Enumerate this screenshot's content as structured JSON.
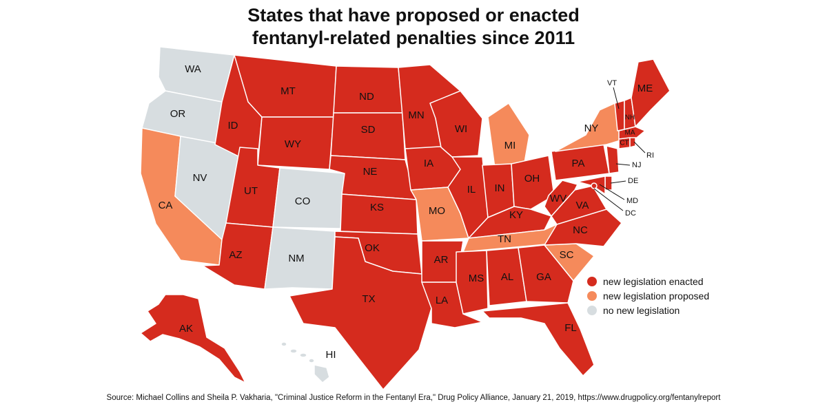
{
  "title": {
    "line1": "States that have proposed or enacted",
    "line2": "fentanyl-related penalties since 2011"
  },
  "colors": {
    "enacted": "#d52b1e",
    "proposed": "#f58a5b",
    "none": "#d7dde0"
  },
  "legend": [
    {
      "key": "enacted",
      "label": "new legislation enacted"
    },
    {
      "key": "proposed",
      "label": "new legislation proposed"
    },
    {
      "key": "none",
      "label": "no new legislation"
    }
  ],
  "states": {
    "WA": "none",
    "OR": "none",
    "NV": "none",
    "CO": "none",
    "NM": "none",
    "HI": "none",
    "CA": "proposed",
    "MO": "proposed",
    "MI": "proposed",
    "TN": "proposed",
    "SC": "proposed",
    "NY": "proposed",
    "ID": "enacted",
    "MT": "enacted",
    "WY": "enacted",
    "UT": "enacted",
    "AZ": "enacted",
    "ND": "enacted",
    "SD": "enacted",
    "NE": "enacted",
    "KS": "enacted",
    "OK": "enacted",
    "TX": "enacted",
    "MN": "enacted",
    "IA": "enacted",
    "AR": "enacted",
    "LA": "enacted",
    "WI": "enacted",
    "IL": "enacted",
    "MS": "enacted",
    "AL": "enacted",
    "IN": "enacted",
    "OH": "enacted",
    "KY": "enacted",
    "GA": "enacted",
    "FL": "enacted",
    "WV": "enacted",
    "VA": "enacted",
    "NC": "enacted",
    "PA": "enacted",
    "NJ": "enacted",
    "DE": "enacted",
    "MD": "enacted",
    "DC": "enacted",
    "VT": "enacted",
    "NH": "enacted",
    "ME": "enacted",
    "MA": "enacted",
    "CT": "enacted",
    "RI": "enacted",
    "AK": "enacted"
  },
  "source": "Source: Michael Collins and Sheila P. Vakharia, \"Criminal Justice Reform in the Fentanyl Era,\" Drug Policy Alliance, January 21, 2019, https://www.drugpolicy.org/fentanylreport"
}
